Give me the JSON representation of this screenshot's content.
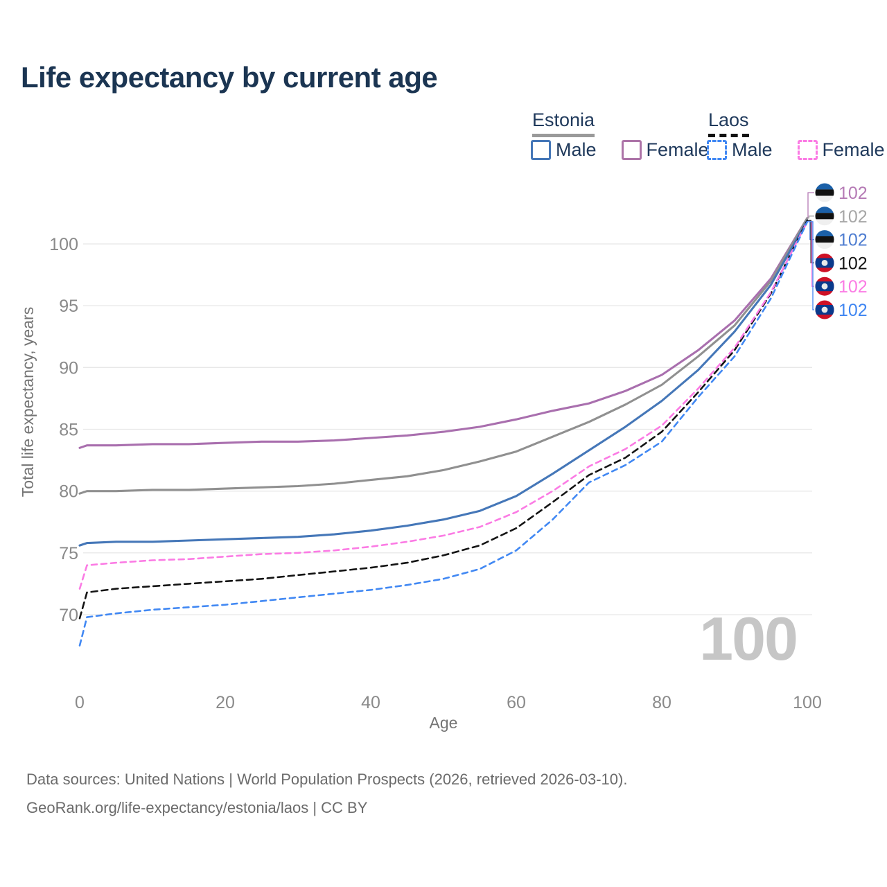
{
  "title": "Life expectancy by current age",
  "legend": {
    "groups": [
      {
        "name": "Estonia",
        "line_style": "solid",
        "underline_color": "#9a9a9a",
        "items": [
          {
            "label": "Male",
            "color": "#4577b8"
          },
          {
            "label": "Female",
            "color": "#ad74a8"
          }
        ]
      },
      {
        "name": "Laos",
        "line_style": "dashed",
        "underline_color": "#121212",
        "items": [
          {
            "label": "Male",
            "color": "#4188f3"
          },
          {
            "label": "Female",
            "color": "#fb7be4"
          }
        ]
      }
    ]
  },
  "chart_data": {
    "type": "line",
    "title": "Life expectancy by current age",
    "xlabel": "Age",
    "ylabel": "Total life expectancy, years",
    "xlim": [
      0,
      100
    ],
    "ylim": [
      66,
      103
    ],
    "xticks": [
      0,
      20,
      40,
      60,
      80,
      100
    ],
    "yticks": [
      70,
      75,
      80,
      85,
      90,
      95,
      100
    ],
    "grid": "horizontal-only",
    "legend_position": "top-right",
    "watermark_age": "100",
    "x": [
      0,
      1,
      5,
      10,
      15,
      20,
      25,
      30,
      35,
      40,
      45,
      50,
      55,
      60,
      65,
      70,
      75,
      80,
      85,
      90,
      95,
      100
    ],
    "series": [
      {
        "name": "Estonia Female",
        "country": "Estonia",
        "sex": "Female",
        "flag": "estonia",
        "color": "#a96fae",
        "dash": "",
        "end_label": "102",
        "label_color": "#b57ab5",
        "values": [
          83.5,
          83.7,
          83.7,
          83.8,
          83.8,
          83.9,
          84.0,
          84.0,
          84.1,
          84.3,
          84.5,
          84.8,
          85.2,
          85.8,
          86.5,
          87.1,
          88.1,
          89.4,
          91.4,
          93.8,
          97.2,
          102.1
        ]
      },
      {
        "name": "Estonia Both sexes",
        "country": "Estonia",
        "sex": "Both",
        "flag": "estonia",
        "color": "#909090",
        "dash": "",
        "end_label": "102",
        "label_color": "#a6a6a6",
        "values": [
          79.8,
          80.0,
          80.0,
          80.1,
          80.1,
          80.2,
          80.3,
          80.4,
          80.6,
          80.9,
          81.2,
          81.7,
          82.4,
          83.2,
          84.4,
          85.6,
          87.0,
          88.6,
          90.9,
          93.4,
          97.0,
          102.1
        ]
      },
      {
        "name": "Estonia Male",
        "country": "Estonia",
        "sex": "Male",
        "flag": "estonia",
        "color": "#4577b8",
        "dash": "",
        "end_label": "102",
        "label_color": "#4d7cd0",
        "values": [
          75.6,
          75.8,
          75.9,
          75.9,
          76.0,
          76.1,
          76.2,
          76.3,
          76.5,
          76.8,
          77.2,
          77.7,
          78.4,
          79.6,
          81.4,
          83.3,
          85.2,
          87.3,
          89.8,
          92.9,
          96.7,
          101.9
        ]
      },
      {
        "name": "Laos Both sexes",
        "country": "Laos",
        "sex": "Both",
        "flag": "laos",
        "color": "#141414",
        "dash": "9 6",
        "end_label": "102",
        "label_color": "#141414",
        "values": [
          69.7,
          71.8,
          72.1,
          72.3,
          72.5,
          72.7,
          72.9,
          73.2,
          73.5,
          73.8,
          74.2,
          74.8,
          75.6,
          77.0,
          79.1,
          81.3,
          82.7,
          84.8,
          88.0,
          91.4,
          96.0,
          101.9
        ]
      },
      {
        "name": "Laos Female",
        "country": "Laos",
        "sex": "Female",
        "flag": "laos",
        "color": "#fb7be4",
        "dash": "8 6",
        "end_label": "102",
        "label_color": "#fb7be4",
        "values": [
          72.1,
          74.0,
          74.2,
          74.4,
          74.5,
          74.7,
          74.9,
          75.0,
          75.2,
          75.5,
          75.9,
          76.4,
          77.1,
          78.3,
          80.0,
          82.0,
          83.4,
          85.3,
          88.3,
          91.6,
          96.1,
          101.8
        ]
      },
      {
        "name": "Laos Male",
        "country": "Laos",
        "sex": "Male",
        "flag": "laos",
        "color": "#4188f3",
        "dash": "8 6",
        "end_label": "102",
        "label_color": "#3f86f2",
        "values": [
          67.5,
          69.8,
          70.1,
          70.4,
          70.6,
          70.8,
          71.1,
          71.4,
          71.7,
          72.0,
          72.4,
          72.9,
          73.7,
          75.2,
          77.7,
          80.7,
          82.1,
          84.0,
          87.6,
          90.9,
          95.6,
          101.8
        ]
      }
    ],
    "flag_colors": {
      "estonia": {
        "top": "#1b60a8",
        "mid": "#111111",
        "bottom": "#efefef"
      },
      "laos": {
        "red": "#ce1126",
        "blue": "#0a3a8c",
        "circle": "#e9e9e9"
      }
    }
  },
  "footer": {
    "line1": "Data sources: United Nations | World Population Prospects (2026, retrieved 2026-03-10).",
    "line2": "GeoRank.org/life-expectancy/estonia/laos | CC BY"
  }
}
